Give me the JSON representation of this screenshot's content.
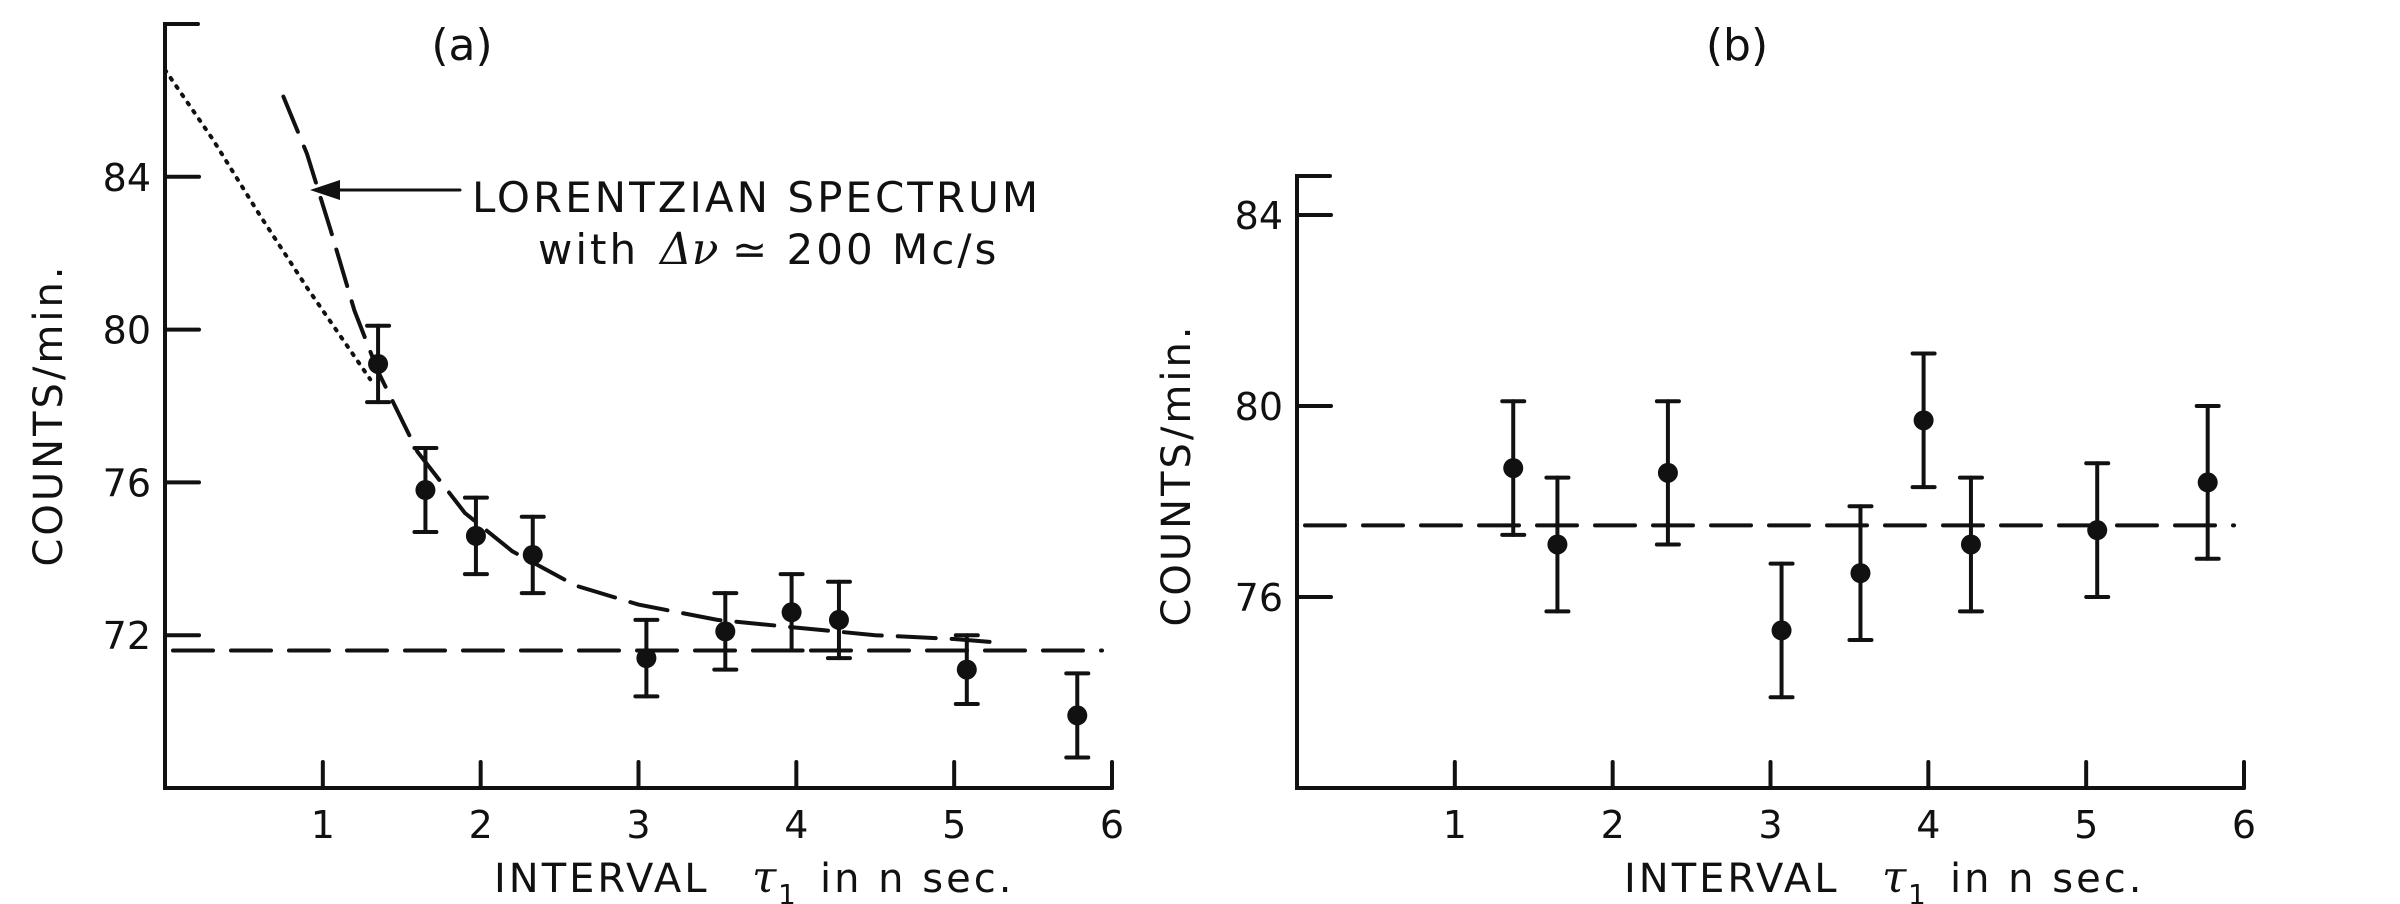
{
  "chart_data": [
    {
      "type": "scatter",
      "panel_label": "(a)",
      "xlabel": "INTERVAL",
      "xlabel_symbol": "τ",
      "xlabel_sub": "1",
      "xlabel_unit": "in n sec.",
      "ylabel": "COUNTS/min.",
      "xlim": [
        0,
        6
      ],
      "ylim": [
        68,
        88
      ],
      "xticks": [
        1,
        2,
        3,
        4,
        5,
        6
      ],
      "yticks": [
        72,
        76,
        80,
        84
      ],
      "points": [
        {
          "x": 1.35,
          "y": 79.1,
          "err": 1.0
        },
        {
          "x": 1.65,
          "y": 75.8,
          "err": 1.1
        },
        {
          "x": 1.97,
          "y": 74.6,
          "err": 1.0
        },
        {
          "x": 2.33,
          "y": 74.1,
          "err": 1.0
        },
        {
          "x": 3.05,
          "y": 71.4,
          "err": 1.0
        },
        {
          "x": 3.55,
          "y": 72.1,
          "err": 1.0
        },
        {
          "x": 3.97,
          "y": 72.6,
          "err": 1.0
        },
        {
          "x": 4.27,
          "y": 72.4,
          "err": 1.0
        },
        {
          "x": 5.08,
          "y": 71.1,
          "err": 0.9
        },
        {
          "x": 5.78,
          "y": 69.9,
          "err": 1.1
        }
      ],
      "baseline": 71.6,
      "lorentzian_curve": {
        "x": [
          0.75,
          0.9,
          1.05,
          1.2,
          1.35,
          1.6,
          1.9,
          2.2,
          2.6,
          3.0,
          3.5,
          4.0,
          4.5,
          5.0,
          5.3
        ],
        "y": [
          86.1,
          84.6,
          82.6,
          80.5,
          78.9,
          76.8,
          75.2,
          74.2,
          73.3,
          72.8,
          72.4,
          72.2,
          72.0,
          71.9,
          71.8
        ]
      },
      "dotted_curve": {
        "x": [
          0.0,
          0.3,
          0.6,
          0.9,
          1.1,
          1.3
        ],
        "y": [
          86.8,
          85.0,
          83.0,
          81.1,
          79.9,
          78.7
        ]
      },
      "annotation_line1": "LORENTZIAN SPECTRUM",
      "annotation_line2_prefix": "with",
      "annotation_symbol": "Δν",
      "annotation_line2_suffix": "≃ 200 Mc/s"
    },
    {
      "type": "scatter",
      "panel_label": "(b)",
      "xlabel": "INTERVAL",
      "xlabel_symbol": "τ",
      "xlabel_sub": "1",
      "xlabel_unit": "in n sec.",
      "ylabel": "COUNTS/min.",
      "xlim": [
        0,
        6
      ],
      "ylim": [
        72,
        88
      ],
      "xticks": [
        1,
        2,
        3,
        4,
        5,
        6
      ],
      "yticks": [
        76,
        80,
        84
      ],
      "points": [
        {
          "x": 1.37,
          "y": 78.7,
          "err": 1.4
        },
        {
          "x": 1.65,
          "y": 77.1,
          "err": 1.4
        },
        {
          "x": 2.35,
          "y": 78.6,
          "err": 1.5
        },
        {
          "x": 3.07,
          "y": 75.3,
          "err": 1.4
        },
        {
          "x": 3.57,
          "y": 76.5,
          "err": 1.4
        },
        {
          "x": 3.97,
          "y": 79.7,
          "err": 1.4
        },
        {
          "x": 4.27,
          "y": 77.1,
          "err": 1.4
        },
        {
          "x": 5.07,
          "y": 77.4,
          "err": 1.4
        },
        {
          "x": 5.77,
          "y": 78.4,
          "err": 1.6
        }
      ],
      "baseline": 77.5
    }
  ]
}
